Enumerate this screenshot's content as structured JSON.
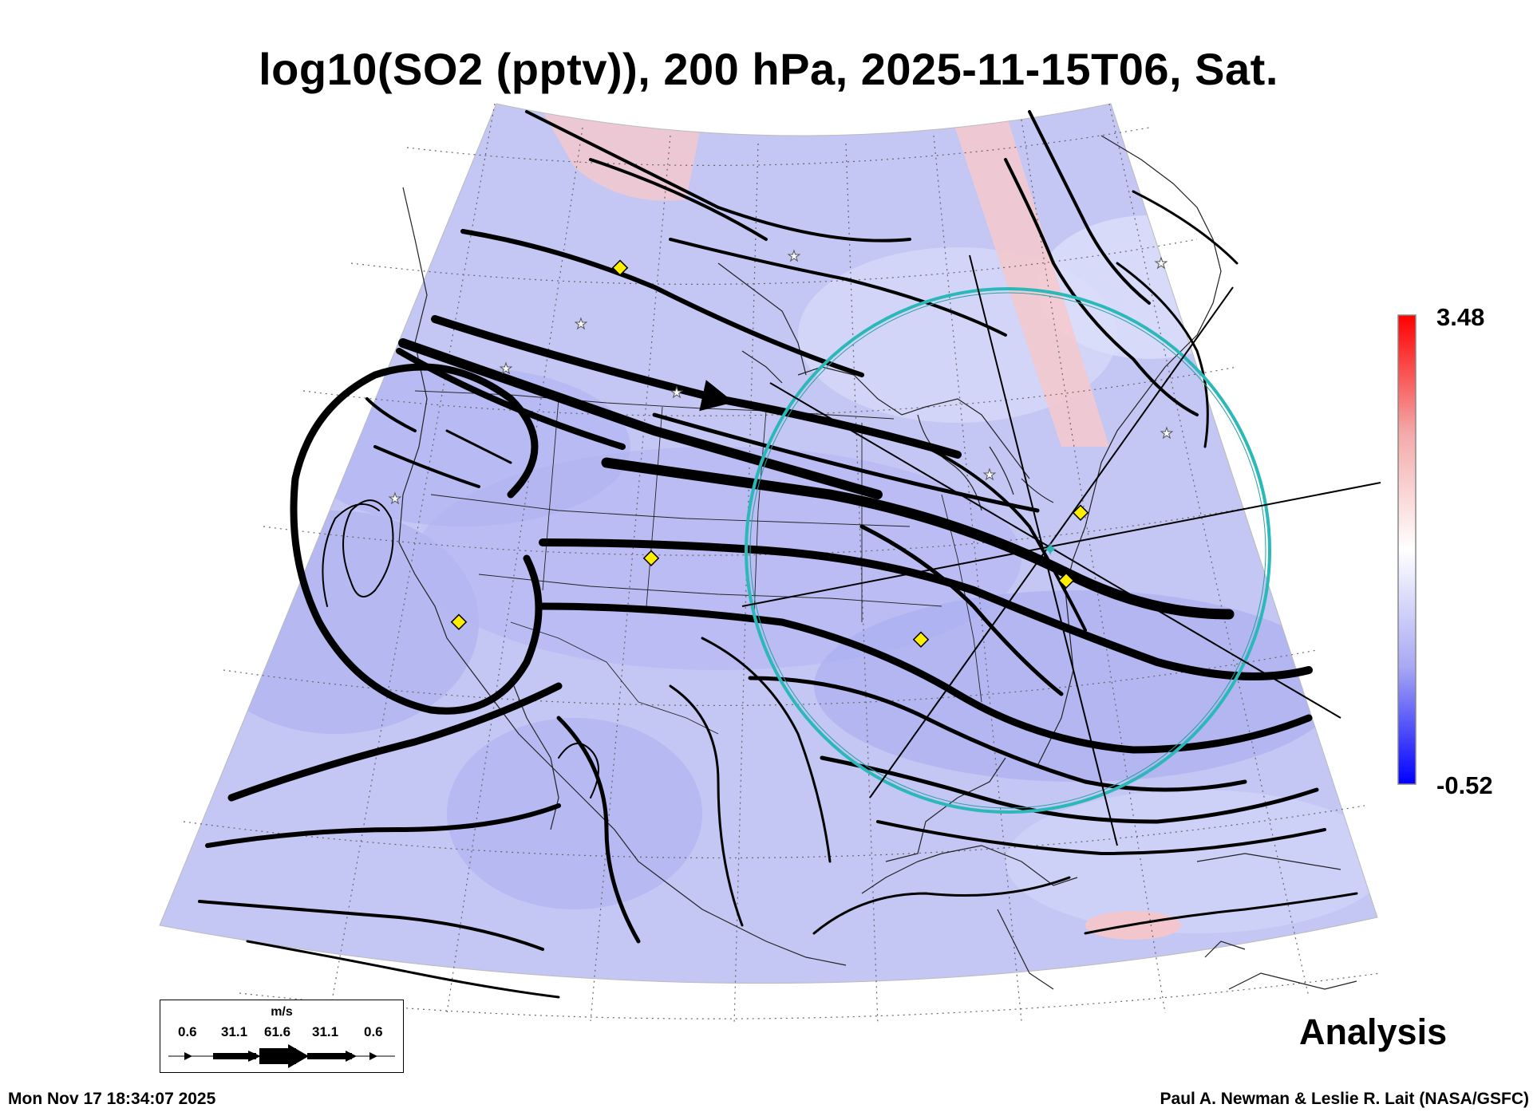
{
  "title": "log10(SO2 (pptv)), 200 hPa, 2025-11-15T06, Sat.",
  "colorbar": {
    "max_label": "3.48",
    "min_label": "-0.52",
    "colors": [
      "#0000ff",
      "#a8a8f4",
      "#ffffff",
      "#f4a8a8",
      "#ff0000"
    ]
  },
  "wind_legend": {
    "unit": "m/s",
    "values": [
      "0.6",
      "31.1",
      "61.6",
      "31.1",
      "0.6"
    ]
  },
  "mode_label": "Analysis",
  "timestamp": "Mon Nov 17 18:34:07 2025",
  "credit": "Paul A. Newman & Leslie R. Lait (NASA/GSFC)",
  "map": {
    "field_colors": {
      "background": "#c4c6f4",
      "low": "#a2a4ee",
      "high": "#f6c8cc"
    },
    "circle_color": "#2ab8b8",
    "marker_color": "#ffee00"
  }
}
